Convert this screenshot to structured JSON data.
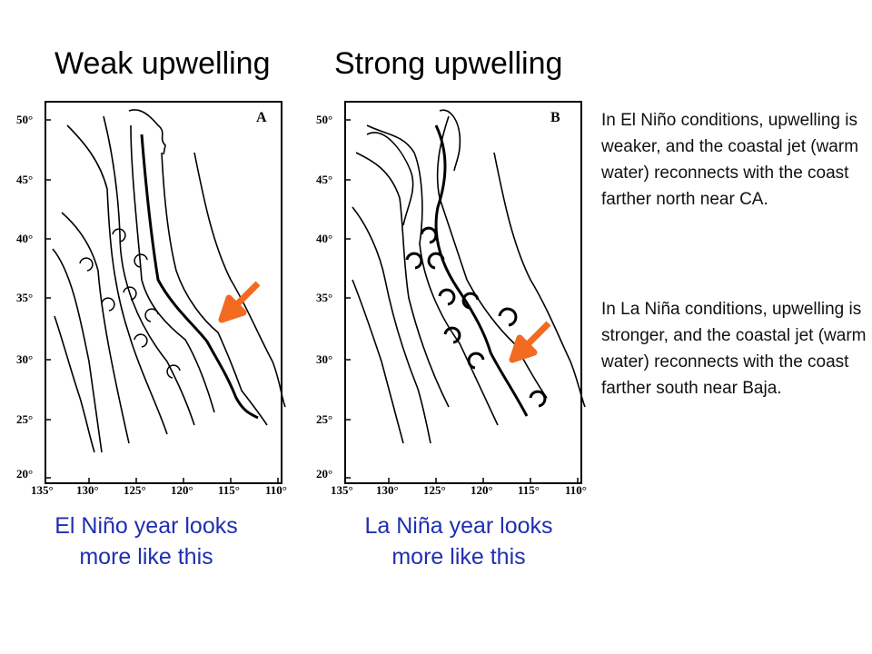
{
  "titles": {
    "left": "Weak upwelling",
    "right": "Strong upwelling"
  },
  "panels": {
    "a": {
      "letter": "A",
      "y_ticks": [
        "50°",
        "45°",
        "40°",
        "35°",
        "30°",
        "25°",
        "20°"
      ],
      "x_ticks": [
        "135°",
        "130°",
        "125°",
        "120°",
        "115°",
        "110°"
      ]
    },
    "b": {
      "letter": "B",
      "y_ticks": [
        "50°",
        "45°",
        "40°",
        "35°",
        "30°",
        "25°",
        "20°"
      ],
      "x_ticks": [
        "135°",
        "130°",
        "125°",
        "120°",
        "115°",
        "110°"
      ]
    }
  },
  "captions": {
    "left": {
      "line1": "El Niño year looks",
      "line2": "more like this"
    },
    "right": {
      "line1": "La Niña year looks",
      "line2": "more like this"
    }
  },
  "explanations": {
    "el_nino": "In El Niño conditions, upwelling is weaker, and the coastal jet (warm water) reconnects with the coast farther north near CA.",
    "la_nina": "In La Niña conditions, upwelling is stronger, and the coastal jet (warm water) reconnects with the coast farther south near Baja."
  },
  "colors": {
    "caption": "#1f2fb0",
    "arrow": "#f26b21",
    "map_ink": "#000000"
  }
}
